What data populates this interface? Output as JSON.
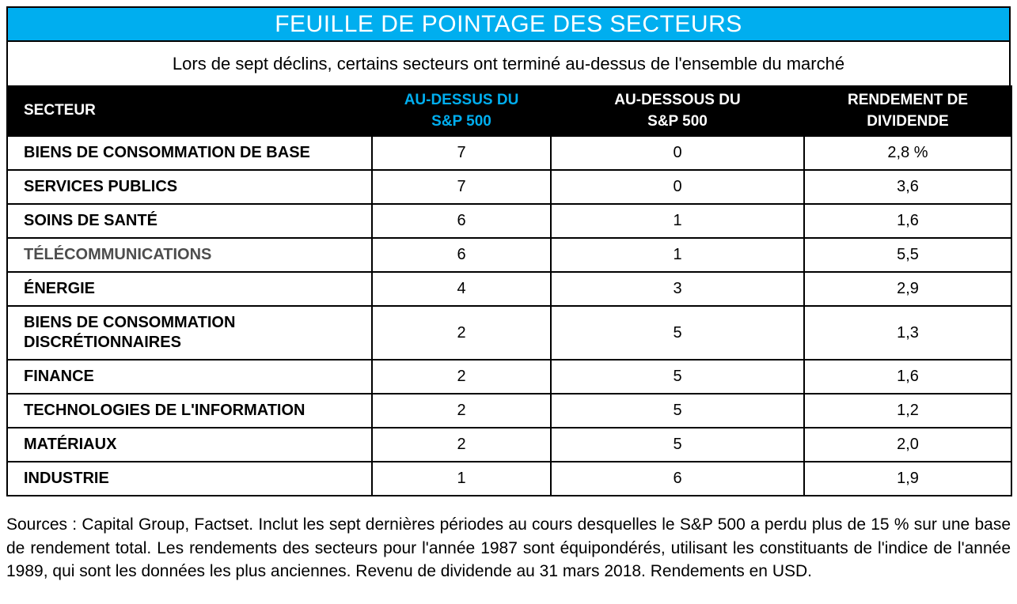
{
  "title": "FEUILLE DE POINTAGE DES SECTEURS",
  "subtitle": "Lors de sept déclins, certains secteurs ont terminé au-dessus de l'ensemble du marché",
  "colors": {
    "accent_cyan": "#00AEEF",
    "header_bg": "#000000",
    "muted_text": "#4D4D4D"
  },
  "chart_data": {
    "type": "table",
    "columns": [
      "SECTEUR",
      "AU-DESSUS DU\nS&P 500",
      "AU-DESSOUS DU\nS&P 500",
      "RENDEMENT DE\nDIVIDENDE"
    ],
    "rows": [
      {
        "sector": "BIENS DE CONSOMMATION DE BASE",
        "above": "7",
        "below": "0",
        "dividend": "2,8 %",
        "muted": false
      },
      {
        "sector": "SERVICES PUBLICS",
        "above": "7",
        "below": "0",
        "dividend": "3,6",
        "muted": false
      },
      {
        "sector": "SOINS DE SANTÉ",
        "above": "6",
        "below": "1",
        "dividend": "1,6",
        "muted": false
      },
      {
        "sector": "TÉLÉCOMMUNICATIONS",
        "above": "6",
        "below": "1",
        "dividend": "5,5",
        "muted": true
      },
      {
        "sector": "ÉNERGIE",
        "above": "4",
        "below": "3",
        "dividend": "2,9",
        "muted": false
      },
      {
        "sector": "BIENS DE CONSOMMATION DISCRÉTIONNAIRES",
        "above": "2",
        "below": "5",
        "dividend": "1,3",
        "muted": false
      },
      {
        "sector": "FINANCE",
        "above": "2",
        "below": "5",
        "dividend": "1,6",
        "muted": false
      },
      {
        "sector": "TECHNOLOGIES DE L'INFORMATION",
        "above": "2",
        "below": "5",
        "dividend": "1,2",
        "muted": false
      },
      {
        "sector": "MATÉRIAUX",
        "above": "2",
        "below": "5",
        "dividend": "2,0",
        "muted": false
      },
      {
        "sector": "INDUSTRIE",
        "above": "1",
        "below": "6",
        "dividend": "1,9",
        "muted": false
      }
    ]
  },
  "footnote": "Sources : Capital Group, Factset. Inclut les sept dernières périodes au cours desquelles le S&P 500 a perdu plus de 15 % sur une base de rendement total. Les rendements des secteurs pour l'année 1987 sont équipondérés, utilisant les constituants de l'indice de l'année 1989, qui sont les données les plus anciennes. Revenu de dividende au 31 mars 2018. Rendements en USD."
}
